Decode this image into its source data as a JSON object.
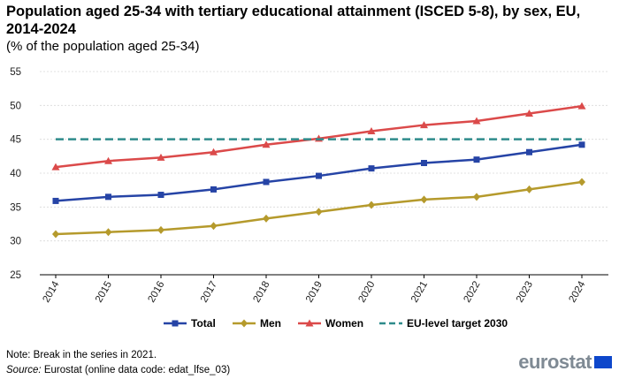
{
  "title": "Population aged 25-34 with tertiary educational attainment (ISCED 5-8), by sex, EU, 2014-2024",
  "subtitle": "(% of the population aged 25-34)",
  "note": "Note: Break in the series in 2021.",
  "source_label": "Source:",
  "source_text": " Eurostat (online data code: edat_lfse_03)",
  "logo": "eurostat",
  "chart_data": {
    "type": "line",
    "categories": [
      "2014",
      "2015",
      "2016",
      "2017",
      "2018",
      "2019",
      "2020",
      "2021",
      "2022",
      "2023",
      "2024"
    ],
    "series": [
      {
        "name": "Total",
        "color": "#2644a6",
        "marker": "square",
        "values": [
          35.9,
          36.5,
          36.8,
          37.6,
          38.7,
          39.6,
          40.7,
          41.5,
          42.0,
          43.1,
          44.2
        ]
      },
      {
        "name": "Men",
        "color": "#b59a2c",
        "marker": "diamond",
        "values": [
          31.0,
          31.3,
          31.6,
          32.2,
          33.3,
          34.3,
          35.3,
          36.1,
          36.5,
          37.6,
          38.7
        ]
      },
      {
        "name": "Women",
        "color": "#db4a4a",
        "marker": "triangle",
        "values": [
          40.9,
          41.8,
          42.3,
          43.1,
          44.2,
          45.1,
          46.2,
          47.1,
          47.7,
          48.8,
          49.9
        ]
      },
      {
        "name": "EU-level target 2030",
        "color": "#2e8b8b",
        "dashed": true,
        "values": [
          45,
          45,
          45,
          45,
          45,
          45,
          45,
          45,
          45,
          45,
          45
        ]
      }
    ],
    "ylim": [
      25,
      55
    ],
    "yticks": [
      25,
      30,
      35,
      40,
      45,
      50,
      55
    ],
    "grid": true,
    "legend_position": "bottom"
  }
}
